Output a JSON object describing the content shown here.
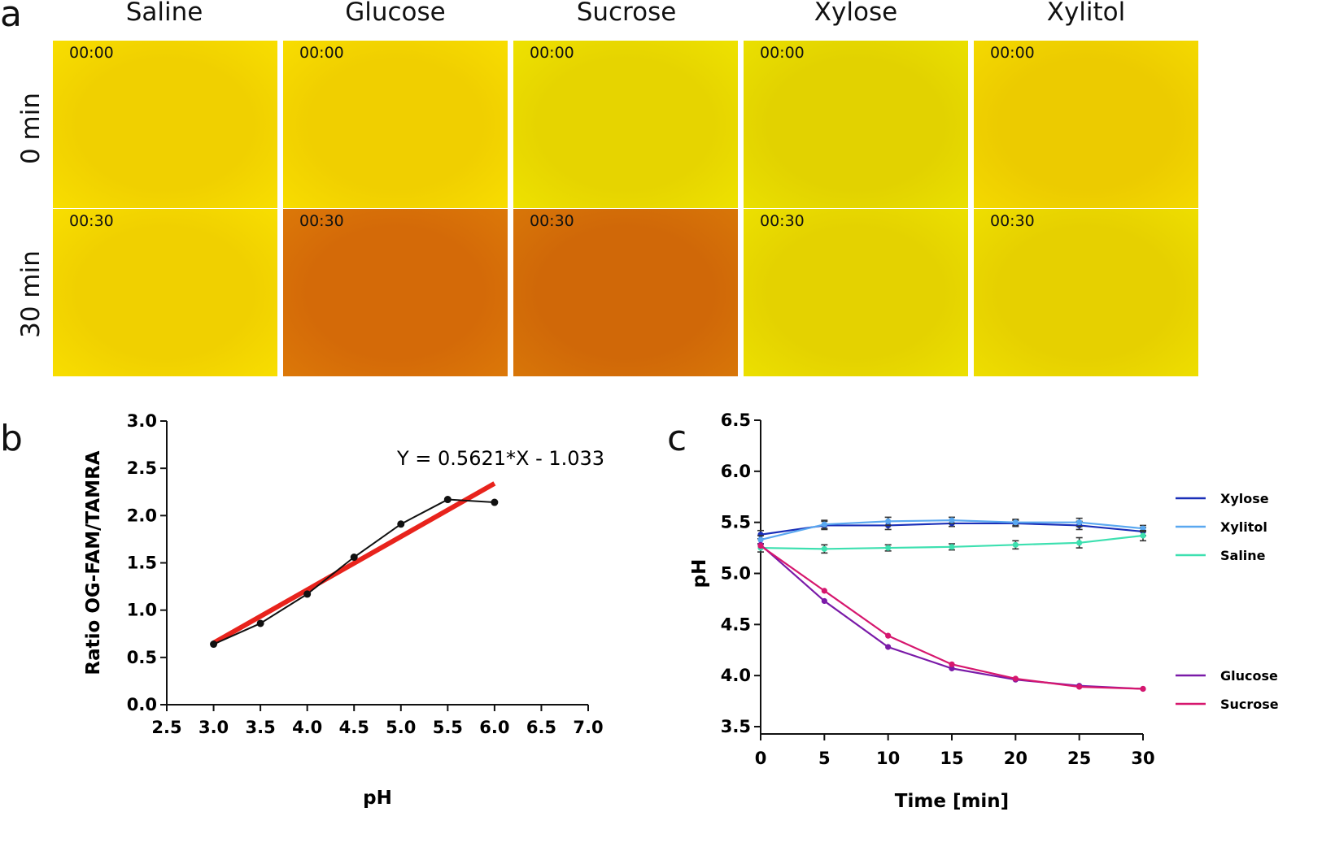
{
  "panel_a": {
    "letter": "a",
    "columns": [
      "Saline",
      "Glucose",
      "Sucrose",
      "Xylose",
      "Xylitol"
    ],
    "rows": [
      {
        "label": "0 min",
        "timestamp": "00:00",
        "colors": [
          "#f0d000",
          "#f0cf00",
          "#e6d400",
          "#e2d200",
          "#eccb00"
        ]
      },
      {
        "label": "30 min",
        "timestamp": "00:30",
        "colors": [
          "#f0d000",
          "#d46a08",
          "#d06808",
          "#e4d200",
          "#e6d000"
        ]
      }
    ]
  },
  "chart_data": [
    {
      "id": "b",
      "letter": "b",
      "type": "scatter",
      "title": "",
      "xlabel": "pH",
      "ylabel": "Ratio OG-FAM/TAMRA",
      "xlim": [
        2.5,
        7.0
      ],
      "ylim": [
        0.0,
        3.0
      ],
      "xticks": [
        "2.5",
        "3.0",
        "3.5",
        "4.0",
        "4.5",
        "5.0",
        "5.5",
        "6.0",
        "6.5",
        "7.0"
      ],
      "yticks": [
        "0.0",
        "0.5",
        "1.0",
        "1.5",
        "2.0",
        "2.5",
        "3.0"
      ],
      "equation": "Y = 0.5621*X - 1.033",
      "fit": {
        "slope": 0.5621,
        "intercept": -1.033,
        "x_range": [
          3.0,
          6.0
        ],
        "color": "#e8231c"
      },
      "series": [
        {
          "name": "data",
          "color": "#111111",
          "x": [
            3.0,
            3.5,
            4.0,
            4.5,
            5.0,
            5.5,
            6.0
          ],
          "y": [
            0.64,
            0.86,
            1.17,
            1.56,
            1.91,
            2.17,
            2.14
          ]
        }
      ]
    },
    {
      "id": "c",
      "letter": "c",
      "type": "line",
      "title": "",
      "xlabel": "Time [min]",
      "ylabel": "pH",
      "xlim": [
        0,
        30
      ],
      "ylim": [
        3.5,
        6.5
      ],
      "xticks": [
        "0",
        "5",
        "10",
        "15",
        "20",
        "25",
        "30"
      ],
      "yticks": [
        "3.5",
        "4.0",
        "4.5",
        "5.0",
        "5.5",
        "6.0",
        "6.5"
      ],
      "x": [
        0,
        5,
        10,
        15,
        20,
        25,
        30
      ],
      "series": [
        {
          "name": "Xylose",
          "color": "#1a2fb8",
          "values": [
            5.38,
            5.47,
            5.47,
            5.49,
            5.49,
            5.47,
            5.41
          ],
          "errors": [
            0.04,
            0.04,
            0.04,
            0.03,
            0.03,
            0.04,
            0.04
          ]
        },
        {
          "name": "Xylitol",
          "color": "#5aa8f0",
          "values": [
            5.33,
            5.48,
            5.51,
            5.52,
            5.5,
            5.5,
            5.44
          ],
          "errors": [
            0.04,
            0.04,
            0.04,
            0.03,
            0.03,
            0.04,
            0.03
          ]
        },
        {
          "name": "Saline",
          "color": "#3de0b0",
          "values": [
            5.25,
            5.24,
            5.25,
            5.26,
            5.28,
            5.3,
            5.37
          ],
          "errors": [
            0.04,
            0.04,
            0.03,
            0.03,
            0.04,
            0.05,
            0.05
          ]
        },
        {
          "name": "Glucose",
          "color": "#7a1aa8",
          "values": [
            5.28,
            4.73,
            4.28,
            4.07,
            3.96,
            3.9,
            3.87
          ],
          "errors": [
            0.0,
            0.0,
            0.0,
            0.0,
            0.0,
            0.0,
            0.0
          ]
        },
        {
          "name": "Sucrose",
          "color": "#d6176e",
          "values": [
            5.27,
            4.83,
            4.39,
            4.11,
            3.97,
            3.89,
            3.87
          ],
          "errors": [
            0.0,
            0.0,
            0.0,
            0.0,
            0.0,
            0.0,
            0.0
          ]
        }
      ],
      "legend_groups": [
        [
          "Xylose",
          "Xylitol",
          "Saline"
        ],
        [
          "Glucose",
          "Sucrose"
        ]
      ]
    }
  ]
}
